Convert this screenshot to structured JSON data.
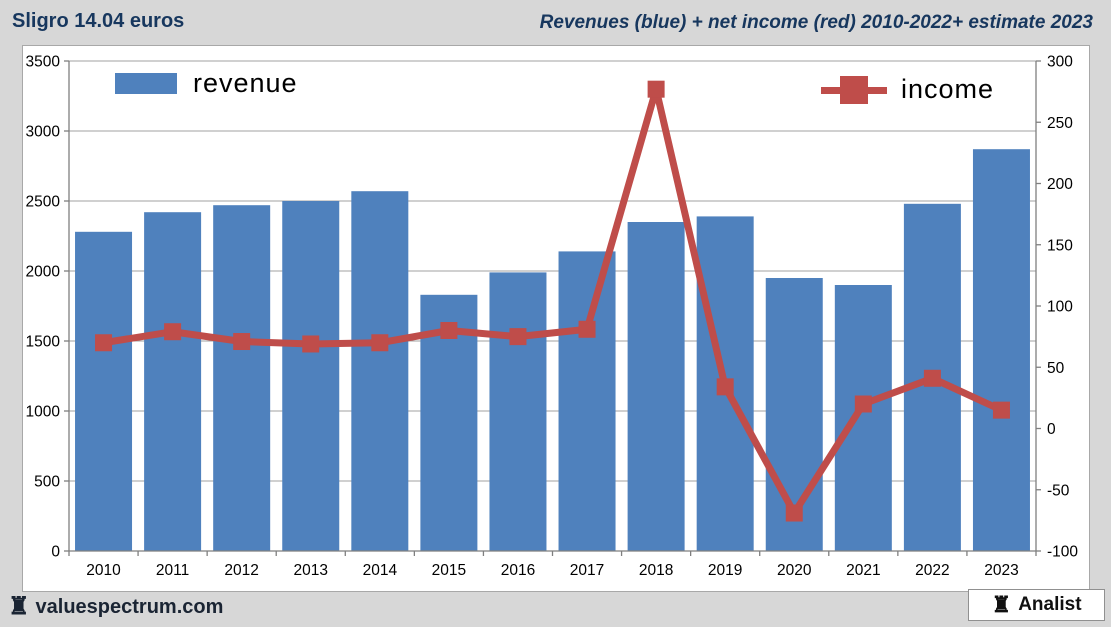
{
  "header": {
    "left_title": "Sligro 14.04 euros",
    "right_title": "Revenues (blue) + net income (red) 2010-2022+ estimate 2023"
  },
  "legend": {
    "revenue_label": "revenue",
    "income_label": "income"
  },
  "footer": {
    "brand": "valuespectrum.com",
    "badge": "Analist",
    "rook_icon": "♜"
  },
  "colors": {
    "bar_blue": "#4f81bd",
    "line_red": "#bf4d4a",
    "title_navy": "#17375e",
    "page_bg": "#d7d7d7",
    "panel_bg": "#ffffff",
    "gridline": "#a0a0a0",
    "axis": "#7f7f7f",
    "tick_text": "#000000"
  },
  "chart_data": {
    "type": "combo bar+line, dual axis",
    "categories": [
      "2010",
      "2011",
      "2012",
      "2013",
      "2014",
      "2015",
      "2016",
      "2017",
      "2018",
      "2019",
      "2020",
      "2021",
      "2022",
      "2023"
    ],
    "series": [
      {
        "name": "revenue",
        "type": "bar",
        "axis": "left",
        "color": "#4f81bd",
        "values": [
          2280,
          2420,
          2470,
          2500,
          2570,
          1830,
          1990,
          2140,
          2350,
          2390,
          1950,
          1900,
          2480,
          2870
        ]
      },
      {
        "name": "income",
        "type": "line",
        "axis": "right",
        "color": "#bf4d4a",
        "values": [
          70,
          79,
          71,
          69,
          70,
          80,
          75,
          81,
          277,
          34,
          -69,
          20,
          41,
          15
        ]
      }
    ],
    "left_axis": {
      "min": 0,
      "max": 3500,
      "step": 500
    },
    "right_axis": {
      "min": -100,
      "max": 300,
      "step": 50
    },
    "grid": true,
    "legend_position": "top-inside"
  }
}
